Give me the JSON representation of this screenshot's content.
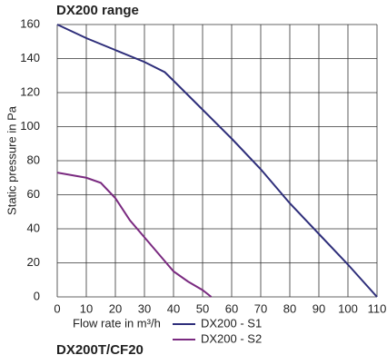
{
  "chart_data": {
    "type": "line",
    "title": "DX200 range",
    "subtitle": "DX200T/CF20",
    "xlabel": "Flow rate in m³/h",
    "ylabel": "Static pressure in Pa",
    "xlim": [
      0,
      110
    ],
    "xticks": [
      0,
      10,
      20,
      30,
      40,
      50,
      60,
      70,
      80,
      90,
      100,
      110
    ],
    "ylim": [
      0,
      160
    ],
    "yticks": [
      0,
      20,
      40,
      60,
      80,
      100,
      120,
      140,
      160
    ],
    "grid": true,
    "legend": "bottom",
    "series": [
      {
        "name": "DX200 - S1",
        "color": "#2e2e7a",
        "x": [
          0,
          10,
          20,
          30,
          37,
          40,
          50,
          60,
          70,
          80,
          90,
          100,
          110
        ],
        "values": [
          160,
          152,
          145,
          138,
          132,
          127,
          110,
          93,
          75,
          55,
          37,
          19,
          0
        ]
      },
      {
        "name": "DX200 - S2",
        "color": "#7a2a80",
        "x": [
          0,
          10,
          15,
          20,
          25,
          30,
          35,
          40,
          45,
          50,
          53
        ],
        "values": [
          73,
          70,
          67,
          58,
          45,
          35,
          25,
          15,
          9,
          4,
          0
        ]
      }
    ]
  }
}
